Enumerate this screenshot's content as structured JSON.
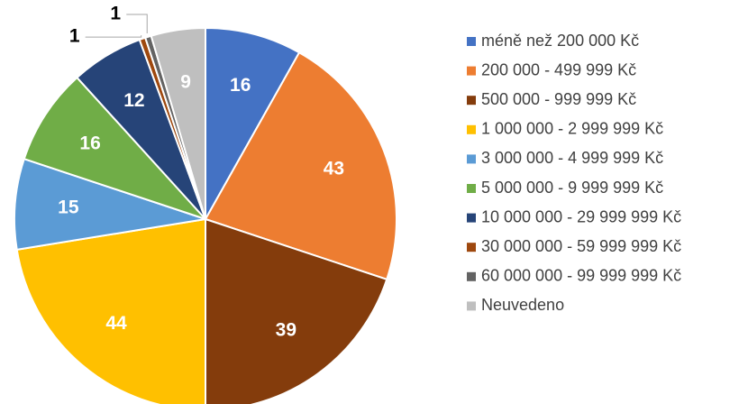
{
  "chart_data": {
    "type": "pie",
    "categories": [
      "méně než 200 000 Kč",
      "200 000 - 499 999 Kč",
      "500 000 - 999 999 Kč",
      "1 000 000 - 2 999 999 Kč",
      "3 000 000 - 4 999 999 Kč",
      "5 000 000 - 9 999 999 Kč",
      "10 000 000 - 29 999 999 Kč",
      "30 000 000 - 59 999 999 Kč",
      "60 000 000 - 99 999 999 Kč",
      "Neuvedeno"
    ],
    "values": [
      16,
      43,
      39,
      44,
      15,
      16,
      12,
      1,
      1,
      9
    ],
    "colors": [
      "#4472c4",
      "#ed7d31",
      "#843c0c",
      "#ffc000",
      "#5b9bd5",
      "#70ad47",
      "#264478",
      "#9e480e",
      "#636363",
      "#bfbfbf"
    ],
    "legend": "right"
  }
}
